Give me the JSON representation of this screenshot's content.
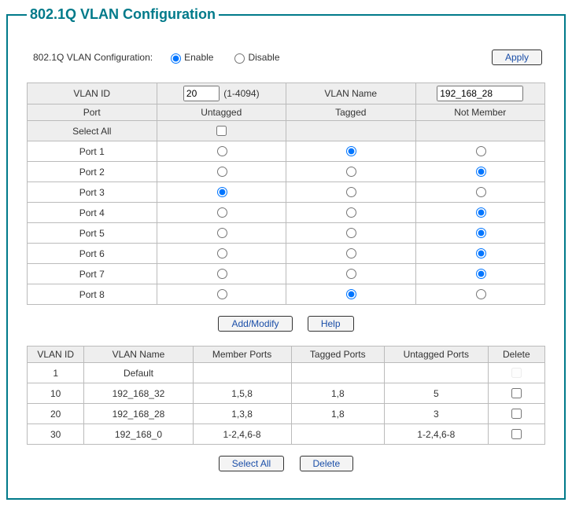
{
  "title": "802.1Q VLAN Configuration",
  "config_label": "802.1Q VLAN Configuration:",
  "enable_label": "Enable",
  "disable_label": "Disable",
  "config_state": "enable",
  "apply_label": "Apply",
  "input_table": {
    "headers": {
      "vlan_id": "VLAN ID",
      "vlan_name": "VLAN Name",
      "port": "Port",
      "untagged": "Untagged",
      "tagged": "Tagged",
      "not_member": "Not Member"
    },
    "vlan_id_value": "20",
    "vlan_id_range": "(1-4094)",
    "vlan_name_value": "192_168_28",
    "select_all_label": "Select All",
    "select_all_checked": false,
    "ports": [
      {
        "label": "Port 1",
        "sel": "tagged"
      },
      {
        "label": "Port 2",
        "sel": "notmember"
      },
      {
        "label": "Port 3",
        "sel": "untagged"
      },
      {
        "label": "Port 4",
        "sel": "notmember"
      },
      {
        "label": "Port 5",
        "sel": "notmember"
      },
      {
        "label": "Port 6",
        "sel": "notmember"
      },
      {
        "label": "Port 7",
        "sel": "notmember"
      },
      {
        "label": "Port 8",
        "sel": "tagged"
      }
    ]
  },
  "add_modify_label": "Add/Modify",
  "help_label": "Help",
  "summary": {
    "headers": {
      "vlan_id": "VLAN ID",
      "vlan_name": "VLAN Name",
      "member_ports": "Member Ports",
      "tagged_ports": "Tagged Ports",
      "untagged_ports": "Untagged Ports",
      "delete": "Delete"
    },
    "rows": [
      {
        "id": "1",
        "name": "Default",
        "member": "",
        "tagged": "",
        "untagged": "",
        "deletable": false,
        "checked": false
      },
      {
        "id": "10",
        "name": "192_168_32",
        "member": "1,5,8",
        "tagged": "1,8",
        "untagged": "5",
        "deletable": true,
        "checked": false
      },
      {
        "id": "20",
        "name": "192_168_28",
        "member": "1,3,8",
        "tagged": "1,8",
        "untagged": "3",
        "deletable": true,
        "checked": false
      },
      {
        "id": "30",
        "name": "192_168_0",
        "member": "1-2,4,6-8",
        "tagged": "",
        "untagged": "1-2,4,6-8",
        "deletable": true,
        "checked": false
      }
    ]
  },
  "select_all_btn_label": "Select All",
  "delete_btn_label": "Delete",
  "colors": {
    "accent": "#007a8a",
    "btn_text": "#1a4ea8",
    "border": "#bbbbbb",
    "header_bg": "#eeeeee"
  }
}
